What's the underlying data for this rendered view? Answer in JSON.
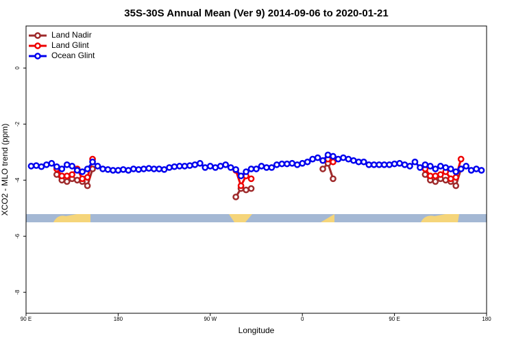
{
  "chart_data": {
    "type": "line",
    "title": "35S-30S Annual Mean (Ver 9)   2014-09-06 to 2020-01-21",
    "xlabel": "Longitude",
    "ylabel": "XCO2 - MLO trend (ppm)",
    "x": [
      95,
      100,
      105,
      110,
      115,
      120,
      125,
      130,
      135,
      140,
      145,
      150,
      155,
      160,
      165,
      170,
      175,
      180,
      185,
      190,
      195,
      200,
      205,
      210,
      215,
      220,
      225,
      230,
      235,
      240,
      245,
      250,
      255,
      260,
      265,
      270,
      275,
      280,
      285,
      290,
      295,
      300,
      305,
      310,
      315,
      320,
      325,
      330,
      335,
      340,
      345,
      350,
      355,
      360,
      365,
      370,
      375,
      380,
      385,
      390,
      395,
      400,
      405,
      410,
      415,
      420,
      425,
      430,
      435,
      440,
      445,
      450,
      455,
      460,
      465,
      470,
      475,
      480,
      485,
      490,
      495,
      500,
      505,
      510,
      515,
      520,
      525,
      530,
      535
    ],
    "series": [
      {
        "name": "Land Nadir",
        "color": "#9e2a2b",
        "values": [
          null,
          null,
          null,
          null,
          null,
          -3.8,
          -4.0,
          -4.05,
          -3.95,
          -4.0,
          -4.05,
          -4.2,
          -3.6,
          null,
          null,
          null,
          null,
          null,
          null,
          null,
          null,
          null,
          null,
          null,
          null,
          null,
          null,
          null,
          null,
          null,
          null,
          null,
          null,
          null,
          null,
          null,
          null,
          null,
          null,
          null,
          -4.6,
          -4.3,
          -4.35,
          -4.3,
          null,
          null,
          null,
          null,
          null,
          null,
          null,
          null,
          null,
          null,
          null,
          null,
          null,
          -3.6,
          -3.4,
          -3.95,
          null,
          null,
          null,
          null,
          null,
          null,
          null,
          null,
          null,
          null,
          null,
          null,
          null,
          null,
          null,
          null,
          null,
          -3.8,
          -4.0,
          -4.05,
          -3.95,
          -4.0,
          -4.05,
          -4.2,
          -3.6,
          null,
          null,
          null,
          null
        ]
      },
      {
        "name": "Land Glint",
        "color": "#ee0000",
        "values": [
          null,
          null,
          null,
          null,
          null,
          -3.6,
          -3.85,
          -3.85,
          -3.8,
          -3.6,
          -3.95,
          -3.9,
          -3.25,
          null,
          null,
          null,
          null,
          null,
          null,
          null,
          null,
          null,
          null,
          null,
          null,
          null,
          null,
          null,
          null,
          null,
          null,
          null,
          null,
          null,
          null,
          null,
          null,
          null,
          null,
          null,
          -3.65,
          -4.2,
          -3.85,
          -3.95,
          null,
          null,
          null,
          null,
          null,
          null,
          null,
          null,
          null,
          null,
          null,
          null,
          null,
          -3.3,
          -3.25,
          -3.35,
          null,
          null,
          null,
          null,
          null,
          null,
          null,
          null,
          null,
          null,
          null,
          null,
          null,
          null,
          null,
          null,
          null,
          -3.6,
          -3.85,
          -3.85,
          -3.8,
          -3.7,
          -3.95,
          -3.9,
          -3.25,
          null,
          null,
          null,
          null
        ]
      },
      {
        "name": "Ocean Glint",
        "color": "#0000ee",
        "values": [
          -3.5,
          -3.48,
          -3.52,
          -3.45,
          -3.4,
          -3.52,
          -3.6,
          -3.45,
          -3.5,
          -3.65,
          -3.7,
          -3.6,
          -3.35,
          -3.5,
          -3.6,
          -3.62,
          -3.65,
          -3.65,
          -3.62,
          -3.65,
          -3.6,
          -3.62,
          -3.6,
          -3.58,
          -3.6,
          -3.6,
          -3.62,
          -3.55,
          -3.52,
          -3.5,
          -3.5,
          -3.48,
          -3.45,
          -3.4,
          -3.55,
          -3.5,
          -3.55,
          -3.5,
          -3.45,
          -3.55,
          -3.62,
          -3.85,
          -3.7,
          -3.6,
          -3.6,
          -3.5,
          -3.55,
          -3.55,
          -3.45,
          -3.42,
          -3.42,
          -3.4,
          -3.45,
          -3.4,
          -3.35,
          -3.25,
          -3.2,
          -3.3,
          -3.1,
          -3.15,
          -3.25,
          -3.2,
          -3.25,
          -3.3,
          -3.35,
          -3.35,
          -3.45,
          -3.45,
          -3.45,
          -3.45,
          -3.45,
          -3.42,
          -3.4,
          -3.45,
          -3.5,
          -3.35,
          -3.55,
          -3.45,
          -3.5,
          -3.6,
          -3.5,
          -3.55,
          -3.6,
          -3.7,
          -3.6,
          -3.5,
          -3.65,
          -3.6,
          -3.65
        ]
      }
    ],
    "xlim": [
      90,
      540
    ],
    "xticks": [
      {
        "value": 90,
        "label": "90 E"
      },
      180,
      {
        "value": 270,
        "label": "90 W"
      },
      {
        "value": 360,
        "label": "0"
      },
      {
        "value": 450,
        "label": "90 E"
      },
      {
        "value": 540,
        "label": "180"
      }
    ],
    "ylim": [
      -8.75,
      1.5
    ],
    "yticks": [
      0,
      -2,
      -4,
      -6,
      -8
    ],
    "legend": "upper left"
  }
}
